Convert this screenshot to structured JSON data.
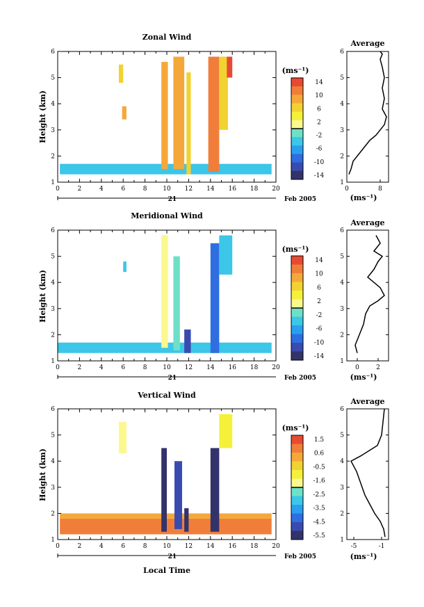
{
  "colors": {
    "cold": [
      "#33336b",
      "#3a4bb0",
      "#2f6ee0",
      "#2a9ff0",
      "#3cc6e8",
      "#6fe0c8"
    ],
    "warm": [
      "#fbf88e",
      "#f5f03a",
      "#f2d232",
      "#f5a83a",
      "#f07e3a",
      "#e74a32"
    ],
    "trace": "#000000",
    "background": "#ffffff"
  },
  "panels": [
    {
      "title": "Zonal Wind",
      "ylabel": "Height (km)",
      "unit": "(ms⁻¹)",
      "cbar_labels": [
        "14",
        "10",
        "6",
        "2",
        "-2",
        "-6",
        "-10",
        "-14"
      ],
      "avg_title": "Average",
      "avg_xticks": [
        "0",
        "8"
      ],
      "avg_unit": "(ms⁻¹)"
    },
    {
      "title": "Meridional Wind",
      "ylabel": "Height (km)",
      "unit": "(ms⁻¹)",
      "cbar_labels": [
        "14",
        "10",
        "6",
        "2",
        "-2",
        "-6",
        "-10",
        "-14"
      ],
      "avg_title": "Average",
      "avg_xticks": [
        "0",
        "2"
      ],
      "avg_unit": "(ms⁻¹)"
    },
    {
      "title": "Vertical Wind",
      "ylabel": "Height (km)",
      "unit": "(ms⁻¹)",
      "cbar_labels": [
        "1.5",
        "0.6",
        "-0.5",
        "-1.6",
        "-2.5",
        "-3.5",
        "-4.5",
        "-5.5"
      ],
      "avg_title": "Average",
      "avg_xticks": [
        "-5",
        "-1"
      ],
      "avg_unit": "(ms⁻¹)"
    }
  ],
  "shared": {
    "xticks": [
      "0",
      "2",
      "4",
      "6",
      "8",
      "10",
      "12",
      "14",
      "16",
      "18",
      "20"
    ],
    "yticks": [
      "1",
      "2",
      "3",
      "4",
      "5",
      "6"
    ],
    "day_label": "21",
    "month_label": "Feb 2005",
    "xlabel": "Local Time"
  },
  "chart_data": [
    {
      "type": "heatmap",
      "title": "Zonal Wind",
      "ylabel": "Height (km)",
      "xlim": [
        0,
        20
      ],
      "ylim": [
        1,
        6
      ],
      "colorbar": {
        "label": "(ms⁻¹)",
        "range": [
          -14,
          14
        ]
      },
      "regions": [
        {
          "x": [
            0.2,
            19.6
          ],
          "y": [
            1.3,
            1.7
          ],
          "value": -4
        },
        {
          "x": [
            5.6,
            6.0
          ],
          "y": [
            4.8,
            5.5
          ],
          "value": 6
        },
        {
          "x": [
            5.9,
            6.3
          ],
          "y": [
            3.4,
            3.9
          ],
          "value": 9
        },
        {
          "x": [
            9.5,
            10.1
          ],
          "y": [
            1.5,
            5.6
          ],
          "value": 8
        },
        {
          "x": [
            10.6,
            11.6
          ],
          "y": [
            1.5,
            5.8
          ],
          "value": 9
        },
        {
          "x": [
            11.8,
            12.2
          ],
          "y": [
            1.3,
            5.2
          ],
          "value": 6
        },
        {
          "x": [
            13.8,
            14.8
          ],
          "y": [
            1.4,
            5.8
          ],
          "value": 11
        },
        {
          "x": [
            14.8,
            15.6
          ],
          "y": [
            3.0,
            5.8
          ],
          "value": 6
        },
        {
          "x": [
            15.5,
            16.0
          ],
          "y": [
            5.0,
            5.8
          ],
          "value": 12
        }
      ]
    },
    {
      "type": "line",
      "title": "Average",
      "xlabel": "(ms⁻¹)",
      "xlim": [
        0,
        10
      ],
      "ylim": [
        1,
        6
      ],
      "x": [
        0.5,
        1.0,
        1.5,
        2.5,
        4.0,
        5.5,
        7.0,
        8.0,
        9.0,
        9.5,
        8.5,
        9.0,
        8.5,
        9.0,
        8.5,
        8.0,
        8.5,
        8.0
      ],
      "y": [
        1.3,
        1.5,
        1.8,
        2.0,
        2.3,
        2.6,
        2.8,
        3.0,
        3.2,
        3.5,
        3.8,
        4.2,
        4.6,
        5.0,
        5.4,
        5.7,
        5.9,
        6.0
      ]
    },
    {
      "type": "heatmap",
      "title": "Meridional Wind",
      "ylabel": "Height (km)",
      "xlim": [
        0,
        20
      ],
      "ylim": [
        1,
        6
      ],
      "colorbar": {
        "label": "(ms⁻¹)",
        "range": [
          -14,
          14
        ]
      },
      "regions": [
        {
          "x": [
            0.0,
            19.6
          ],
          "y": [
            1.3,
            1.7
          ],
          "value": -4
        },
        {
          "x": [
            6.0,
            6.3
          ],
          "y": [
            4.4,
            4.8
          ],
          "value": -3
        },
        {
          "x": [
            9.5,
            10.1
          ],
          "y": [
            1.5,
            5.8
          ],
          "value": 2
        },
        {
          "x": [
            10.6,
            11.2
          ],
          "y": [
            1.4,
            5.0
          ],
          "value": -2
        },
        {
          "x": [
            11.6,
            12.2
          ],
          "y": [
            1.3,
            2.2
          ],
          "value": -10
        },
        {
          "x": [
            14.0,
            14.8
          ],
          "y": [
            1.3,
            5.5
          ],
          "value": -8
        },
        {
          "x": [
            14.8,
            16.0
          ],
          "y": [
            4.3,
            5.8
          ],
          "value": -4
        }
      ]
    },
    {
      "type": "line",
      "title": "Average",
      "xlabel": "(ms⁻¹)",
      "xlim": [
        -1,
        3
      ],
      "ylim": [
        1,
        6
      ],
      "x": [
        0.0,
        -0.2,
        0.2,
        0.6,
        0.8,
        1.2,
        2.0,
        2.6,
        2.2,
        1.0,
        1.6,
        2.0,
        2.4,
        1.6,
        2.2,
        1.8
      ],
      "y": [
        1.3,
        1.6,
        2.0,
        2.4,
        2.8,
        3.1,
        3.3,
        3.5,
        3.8,
        4.2,
        4.5,
        4.8,
        5.0,
        5.2,
        5.5,
        5.8
      ]
    },
    {
      "type": "heatmap",
      "title": "Vertical Wind",
      "ylabel": "Height (km)",
      "xlim": [
        0,
        20
      ],
      "ylim": [
        1,
        6
      ],
      "colorbar": {
        "label": "(ms⁻¹)",
        "range": [
          -5.5,
          1.5
        ]
      },
      "regions": [
        {
          "x": [
            0.2,
            19.6
          ],
          "y": [
            1.2,
            1.8
          ],
          "value": 0.8
        },
        {
          "x": [
            0.2,
            19.6
          ],
          "y": [
            1.8,
            2.0
          ],
          "value": 0.3
        },
        {
          "x": [
            5.6,
            6.3
          ],
          "y": [
            4.3,
            5.5
          ],
          "value": -1.8
        },
        {
          "x": [
            9.5,
            10.0
          ],
          "y": [
            1.3,
            4.5
          ],
          "value": -5.5
        },
        {
          "x": [
            10.7,
            11.4
          ],
          "y": [
            1.4,
            4.0
          ],
          "value": -4.8
        },
        {
          "x": [
            11.6,
            12.0
          ],
          "y": [
            1.3,
            2.2
          ],
          "value": -5.0
        },
        {
          "x": [
            14.0,
            14.8
          ],
          "y": [
            1.3,
            4.5
          ],
          "value": -5.2
        },
        {
          "x": [
            14.8,
            16.0
          ],
          "y": [
            4.5,
            5.8
          ],
          "value": -1.0
        }
      ]
    },
    {
      "type": "line",
      "title": "Average",
      "xlabel": "(ms⁻¹)",
      "xlim": [
        -6,
        0
      ],
      "ylim": [
        1,
        6
      ],
      "x": [
        -0.5,
        -0.7,
        -1.2,
        -2.0,
        -2.6,
        -3.0,
        -3.4,
        -3.8,
        -4.2,
        -4.6,
        -5.4,
        -4.0,
        -1.6,
        -1.0,
        -0.8,
        -0.6
      ],
      "y": [
        1.1,
        1.4,
        1.7,
        2.0,
        2.3,
        2.5,
        2.7,
        3.0,
        3.3,
        3.6,
        4.0,
        4.2,
        4.6,
        5.0,
        5.5,
        6.0
      ]
    }
  ]
}
